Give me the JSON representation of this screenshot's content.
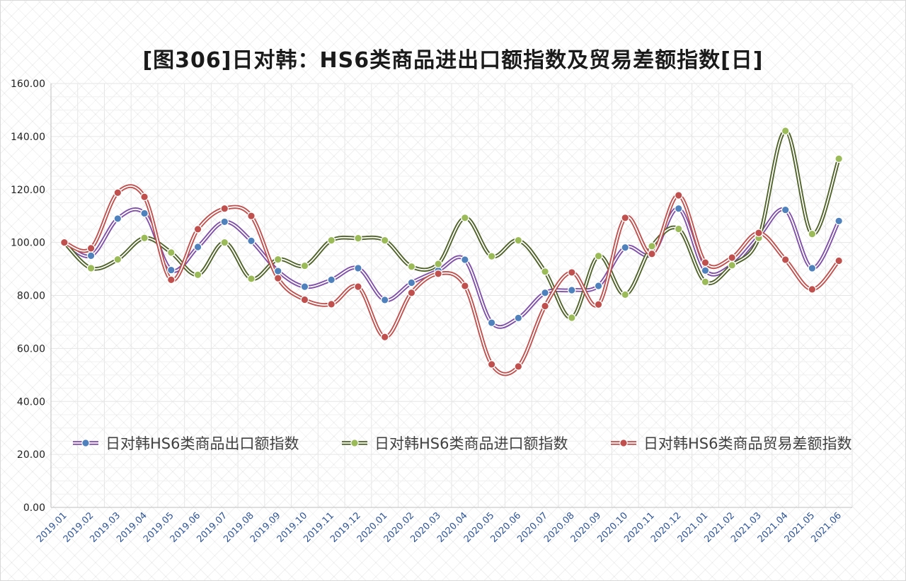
{
  "chart_data": {
    "type": "line",
    "title": "[图306]日对韩：HS6类商品进出口额指数及贸易差额指数[日]",
    "categories": [
      "2019.01",
      "2019.02",
      "2019.03",
      "2019.04",
      "2019.05",
      "2019.06",
      "2019.07",
      "2019.08",
      "2019.09",
      "2019.10",
      "2019.11",
      "2019.12",
      "2020.01",
      "2020.02",
      "2020.03",
      "2020.04",
      "2020.05",
      "2020.06",
      "2020.07",
      "2020.08",
      "2020.09",
      "2020.10",
      "2020.11",
      "2020.12",
      "2021.01",
      "2021.02",
      "2021.03",
      "2021.04",
      "2021.05",
      "2021.06"
    ],
    "y_ticks": [
      "0.00",
      "20.00",
      "40.00",
      "60.00",
      "80.00",
      "100.00",
      "120.00",
      "140.00",
      "160.00"
    ],
    "ylim": [
      0,
      160
    ],
    "grid": true,
    "legend_position": "inside-bottom",
    "series": [
      {
        "name": "日对韩HS6类商品出口额指数",
        "line_color": "#7f4ea8",
        "marker_color": "#4f81bd",
        "values": [
          100.0,
          95.0,
          109.0,
          111.0,
          89.6,
          98.3,
          107.8,
          100.6,
          89.2,
          83.3,
          85.9,
          90.3,
          78.3,
          84.8,
          89.4,
          93.5,
          69.7,
          71.5,
          81.0,
          82.0,
          83.6,
          98.1,
          95.5,
          112.8,
          89.4,
          91.5,
          102.2,
          112.3,
          90.3,
          108.1
        ]
      },
      {
        "name": "日对韩HS6类商品进口额指数",
        "line_color": "#4f6228",
        "marker_color": "#9bbb59",
        "values": [
          100.0,
          90.3,
          93.6,
          101.7,
          96.2,
          87.8,
          100.0,
          86.3,
          93.6,
          91.2,
          100.8,
          101.6,
          100.8,
          90.9,
          91.9,
          109.3,
          94.8,
          100.8,
          89.0,
          71.6,
          94.9,
          80.3,
          98.6,
          105.1,
          85.1,
          91.4,
          101.7,
          142.1,
          103.2,
          131.6
        ]
      },
      {
        "name": "日对韩HS6类商品贸易差额指数",
        "line_color": "#c0504d",
        "marker_color": "#c0504d",
        "values": [
          100.0,
          97.8,
          118.8,
          117.2,
          85.9,
          105.0,
          112.8,
          110.0,
          86.5,
          78.4,
          76.7,
          83.3,
          64.3,
          81.0,
          88.2,
          83.6,
          54.0,
          53.2,
          76.0,
          88.7,
          76.6,
          109.3,
          95.7,
          117.8,
          92.4,
          94.3,
          103.6,
          93.5,
          82.3,
          93.1
        ]
      }
    ]
  }
}
